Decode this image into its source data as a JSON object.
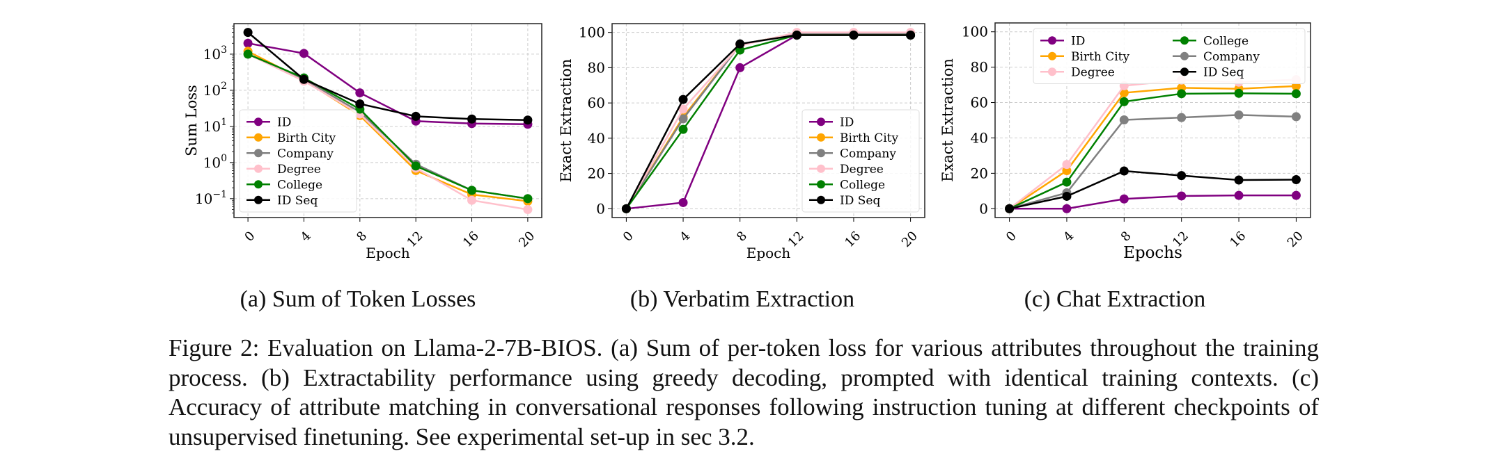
{
  "chart_data": [
    {
      "type": "line",
      "ylabel": "Sum Loss",
      "xlabel": "Epoch",
      "yscale": "log",
      "ylim": [
        0.03,
        7000
      ],
      "xlim": [
        -1,
        21
      ],
      "x": [
        0,
        4,
        8,
        12,
        16,
        20
      ],
      "x_ticks": [
        "0",
        "4",
        "8",
        "12",
        "16",
        "20"
      ],
      "y_ticks": [
        {
          "v": 1000,
          "base": "10",
          "exp": "3"
        },
        {
          "v": 100,
          "base": "10",
          "exp": "2"
        },
        {
          "v": 10,
          "base": "10",
          "exp": "1"
        },
        {
          "v": 1,
          "base": "10",
          "exp": "0"
        },
        {
          "v": 0.1,
          "base": "10",
          "exp": "−1"
        }
      ],
      "grid": true,
      "legend": "lower-left",
      "legend_columns": 1,
      "series": [
        {
          "name": "ID",
          "color": "#800080",
          "values": [
            2000,
            1050,
            85,
            14,
            12,
            11.5
          ]
        },
        {
          "name": "Birth City",
          "color": "#FFA500",
          "values": [
            1200,
            190,
            20,
            0.6,
            0.13,
            0.085
          ]
        },
        {
          "name": "Company",
          "color": "#808080",
          "values": [
            1000,
            200,
            25,
            0.9,
            0.17,
            0.1
          ]
        },
        {
          "name": "Degree",
          "color": "#FFC0CB",
          "values": [
            1000,
            180,
            22,
            0.7,
            0.09,
            0.05
          ]
        },
        {
          "name": "College",
          "color": "#008000",
          "values": [
            1000,
            220,
            30,
            0.8,
            0.17,
            0.1
          ]
        },
        {
          "name": "ID Seq",
          "color": "#000000",
          "values": [
            4000,
            200,
            42,
            19,
            16,
            15
          ]
        }
      ]
    },
    {
      "type": "line",
      "ylabel": "Exact Extraction",
      "xlabel": "Epoch",
      "yscale": "linear",
      "ylim": [
        -5,
        105
      ],
      "xlim": [
        -1,
        21
      ],
      "x": [
        0,
        4,
        8,
        12,
        16,
        20
      ],
      "x_ticks": [
        "0",
        "4",
        "8",
        "12",
        "16",
        "20"
      ],
      "y_ticks": [
        {
          "v": 0,
          "label": "0"
        },
        {
          "v": 20,
          "label": "20"
        },
        {
          "v": 40,
          "label": "40"
        },
        {
          "v": 60,
          "label": "60"
        },
        {
          "v": 80,
          "label": "80"
        },
        {
          "v": 100,
          "label": "100"
        }
      ],
      "grid": true,
      "legend": "lower-right",
      "legend_columns": 1,
      "series": [
        {
          "name": "ID",
          "color": "#800080",
          "values": [
            0,
            3.5,
            80,
            98.5,
            98.5,
            98.5
          ]
        },
        {
          "name": "Birth City",
          "color": "#FFA500",
          "values": [
            0,
            52,
            93,
            99.5,
            99.5,
            99.5
          ]
        },
        {
          "name": "Company",
          "color": "#808080",
          "values": [
            0,
            51,
            93,
            99.5,
            99.5,
            99.5
          ]
        },
        {
          "name": "Degree",
          "color": "#FFC0CB",
          "values": [
            0,
            56.5,
            92.5,
            100,
            100,
            100
          ]
        },
        {
          "name": "College",
          "color": "#008000",
          "values": [
            0,
            45,
            90,
            98.5,
            98.5,
            98.5
          ]
        },
        {
          "name": "ID Seq",
          "color": "#000000",
          "values": [
            0,
            62,
            93.5,
            98.5,
            98.5,
            98.5
          ]
        }
      ]
    },
    {
      "type": "line",
      "ylabel": "Exact Extraction",
      "xlabel": "Epochs",
      "yscale": "linear",
      "ylim": [
        -5,
        105
      ],
      "xlim": [
        -1,
        21
      ],
      "x": [
        0,
        4,
        8,
        12,
        16,
        20
      ],
      "x_ticks": [
        "0",
        "4",
        "8",
        "12",
        "16",
        "20"
      ],
      "y_ticks": [
        {
          "v": 0,
          "label": "0"
        },
        {
          "v": 20,
          "label": "20"
        },
        {
          "v": 40,
          "label": "40"
        },
        {
          "v": 60,
          "label": "60"
        },
        {
          "v": 80,
          "label": "80"
        },
        {
          "v": 100,
          "label": "100"
        }
      ],
      "grid": true,
      "legend": "upper-right",
      "legend_columns": 2,
      "series": [
        {
          "name": "ID",
          "color": "#800080",
          "values": [
            0,
            0,
            5.5,
            7.2,
            7.5,
            7.5
          ]
        },
        {
          "name": "Birth City",
          "color": "#FFA500",
          "values": [
            0,
            21.5,
            65.5,
            68.3,
            67.8,
            69.3
          ]
        },
        {
          "name": "Degree",
          "color": "#FFC0CB",
          "values": [
            0,
            25,
            69.5,
            72.7,
            71.5,
            73
          ]
        },
        {
          "name": "College",
          "color": "#008000",
          "values": [
            0,
            15,
            60.5,
            65,
            65.2,
            65
          ]
        },
        {
          "name": "Company",
          "color": "#808080",
          "values": [
            0,
            9,
            50.2,
            51.5,
            53,
            52
          ]
        },
        {
          "name": "ID Seq",
          "color": "#000000",
          "values": [
            0,
            7,
            21.3,
            18.7,
            16.2,
            16.4
          ]
        }
      ]
    }
  ],
  "subcaptions": [
    "(a) Sum of Token Losses",
    "(b) Verbatim Extraction",
    "(c) Chat Extraction"
  ],
  "caption": "Figure 2: Evaluation on Llama-2-7B-BIOS. (a) Sum of per-token loss for various attributes throughout the training process. (b) Extractability performance using greedy decoding, prompted with identical training contexts. (c) Accuracy of attribute matching in conversational responses following instruction tuning at different checkpoints of unsupervised finetuning. See experimental set-up in sec 3.2."
}
